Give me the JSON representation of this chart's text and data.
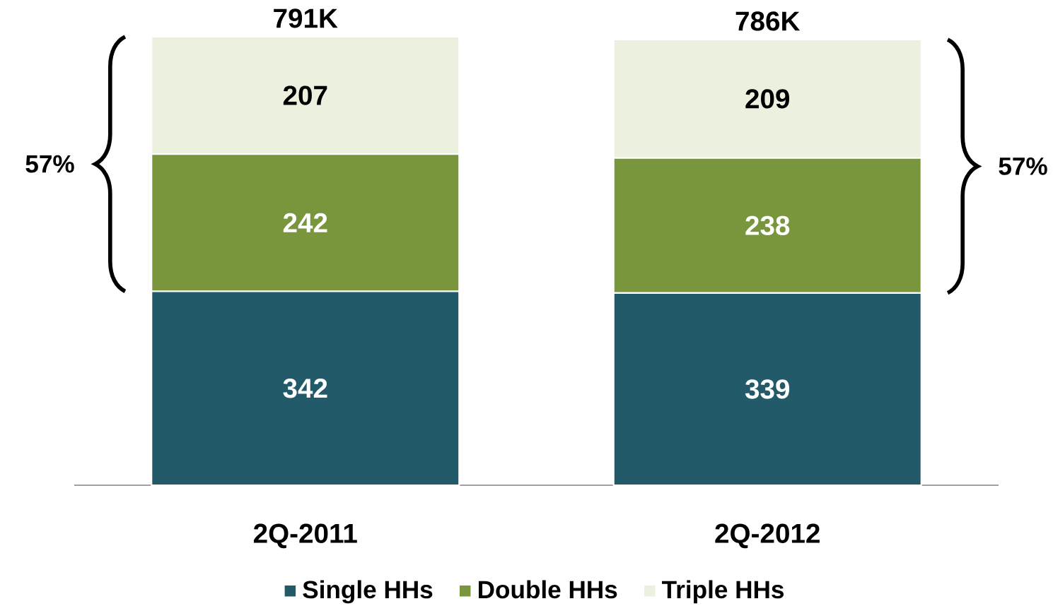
{
  "chart_data": {
    "type": "bar",
    "stacked": true,
    "data_labels": true,
    "legend": "bottom",
    "categories": [
      "2Q-2011",
      "2Q-2012"
    ],
    "series": [
      {
        "name": "Single HHs",
        "color": "#235a6a",
        "values": [
          342,
          339
        ]
      },
      {
        "name": "Double HHs",
        "color": "#79963d",
        "values": [
          242,
          238
        ]
      },
      {
        "name": "Triple HHs",
        "color": "#ebf0df",
        "values": [
          207,
          209
        ]
      }
    ],
    "totals": [
      "791K",
      "786K"
    ],
    "annotations": [
      "57%",
      "57%"
    ]
  }
}
